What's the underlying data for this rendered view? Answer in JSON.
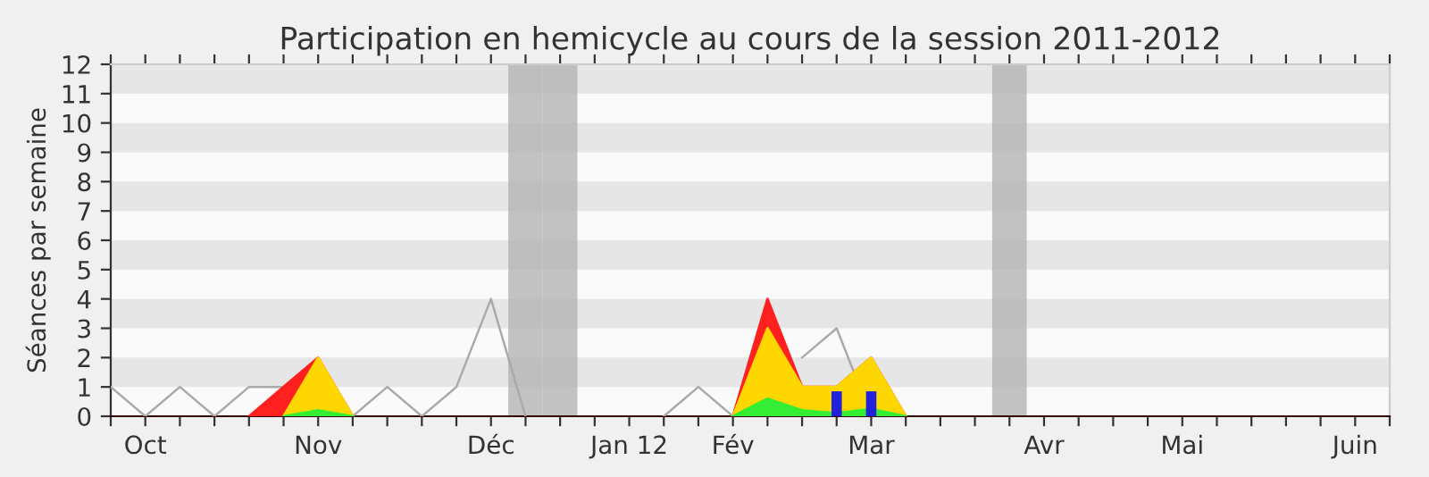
{
  "chart_data": {
    "type": "area",
    "title": "Participation en hemicycle au cours de la session 2011-2012",
    "ylabel": "Séances par semaine",
    "ylim": [
      0,
      12
    ],
    "yticks": [
      0,
      1,
      2,
      3,
      4,
      5,
      6,
      7,
      8,
      9,
      10,
      11,
      12
    ],
    "categories": [
      null,
      "Oct",
      null,
      null,
      null,
      null,
      "Nov",
      null,
      null,
      null,
      null,
      "Déc",
      null,
      null,
      null,
      "Jan 12",
      null,
      null,
      "Fév",
      null,
      null,
      null,
      "Mar",
      null,
      null,
      null,
      null,
      "Avr",
      null,
      null,
      null,
      "Mai",
      null,
      null,
      null,
      null,
      "Juin",
      null
    ],
    "bands": [
      {
        "axis": "y",
        "from": 1,
        "to": 2,
        "color": "#e6e6e6"
      },
      {
        "axis": "y",
        "from": 3,
        "to": 4,
        "color": "#e6e6e6"
      },
      {
        "axis": "y",
        "from": 5,
        "to": 6,
        "color": "#e6e6e6"
      },
      {
        "axis": "y",
        "from": 7,
        "to": 8,
        "color": "#e6e6e6"
      },
      {
        "axis": "y",
        "from": 9,
        "to": 10,
        "color": "#e6e6e6"
      },
      {
        "axis": "y",
        "from": 11,
        "to": 12,
        "color": "#e6e6e6"
      }
    ],
    "series": [
      {
        "type": "bar",
        "color": "#b4b4b4",
        "values": [
          null,
          null,
          null,
          null,
          null,
          null,
          null,
          null,
          null,
          null,
          null,
          null,
          12,
          12,
          null,
          null,
          null,
          null,
          null,
          null,
          null,
          null,
          null,
          null,
          null,
          null,
          12,
          null,
          null,
          null,
          null,
          null,
          null,
          null,
          null,
          null,
          null,
          null
        ]
      },
      {
        "type": "line",
        "color": "#aaaaaa",
        "values": [
          1,
          0,
          1,
          0,
          1,
          1,
          null,
          0,
          1,
          0,
          1,
          4,
          0,
          null,
          null,
          null,
          0,
          1,
          0,
          null,
          2,
          3,
          0,
          null,
          null,
          null,
          null,
          null,
          null,
          null,
          null,
          null,
          null,
          null,
          null,
          null,
          null,
          null
        ]
      },
      {
        "color": "#ff2020",
        "values": [
          null,
          null,
          null,
          null,
          0,
          1,
          2,
          0,
          null,
          null,
          null,
          null,
          null,
          null,
          null,
          null,
          null,
          null,
          0,
          4,
          1,
          1,
          2,
          0,
          null,
          null,
          null,
          null,
          null,
          null,
          null,
          null,
          null,
          null,
          null,
          null,
          null,
          null
        ]
      },
      {
        "color": "#ffd700",
        "values": [
          null,
          null,
          null,
          null,
          null,
          0,
          2,
          0,
          null,
          null,
          null,
          null,
          null,
          null,
          null,
          null,
          null,
          null,
          0,
          3,
          1,
          1,
          2,
          0,
          null,
          null,
          null,
          null,
          null,
          null,
          null,
          null,
          null,
          null,
          null,
          null,
          null,
          null
        ]
      },
      {
        "color": "#33ee33",
        "values": [
          null,
          null,
          null,
          null,
          null,
          0,
          0.2,
          0,
          null,
          null,
          null,
          null,
          null,
          null,
          null,
          null,
          null,
          null,
          0,
          0.6,
          0.2,
          0.1,
          0.25,
          0,
          null,
          null,
          null,
          null,
          null,
          null,
          null,
          null,
          null,
          null,
          null,
          null,
          null,
          null
        ]
      },
      {
        "type": "bar",
        "color": "#2222dd",
        "values": [
          null,
          null,
          null,
          null,
          null,
          null,
          null,
          null,
          null,
          null,
          null,
          null,
          null,
          null,
          null,
          null,
          null,
          null,
          null,
          null,
          null,
          0.85,
          0.85,
          null,
          null,
          null,
          null,
          null,
          null,
          null,
          null,
          null,
          null,
          null,
          null,
          null,
          null,
          null
        ]
      }
    ],
    "grid": false,
    "legend": false
  }
}
